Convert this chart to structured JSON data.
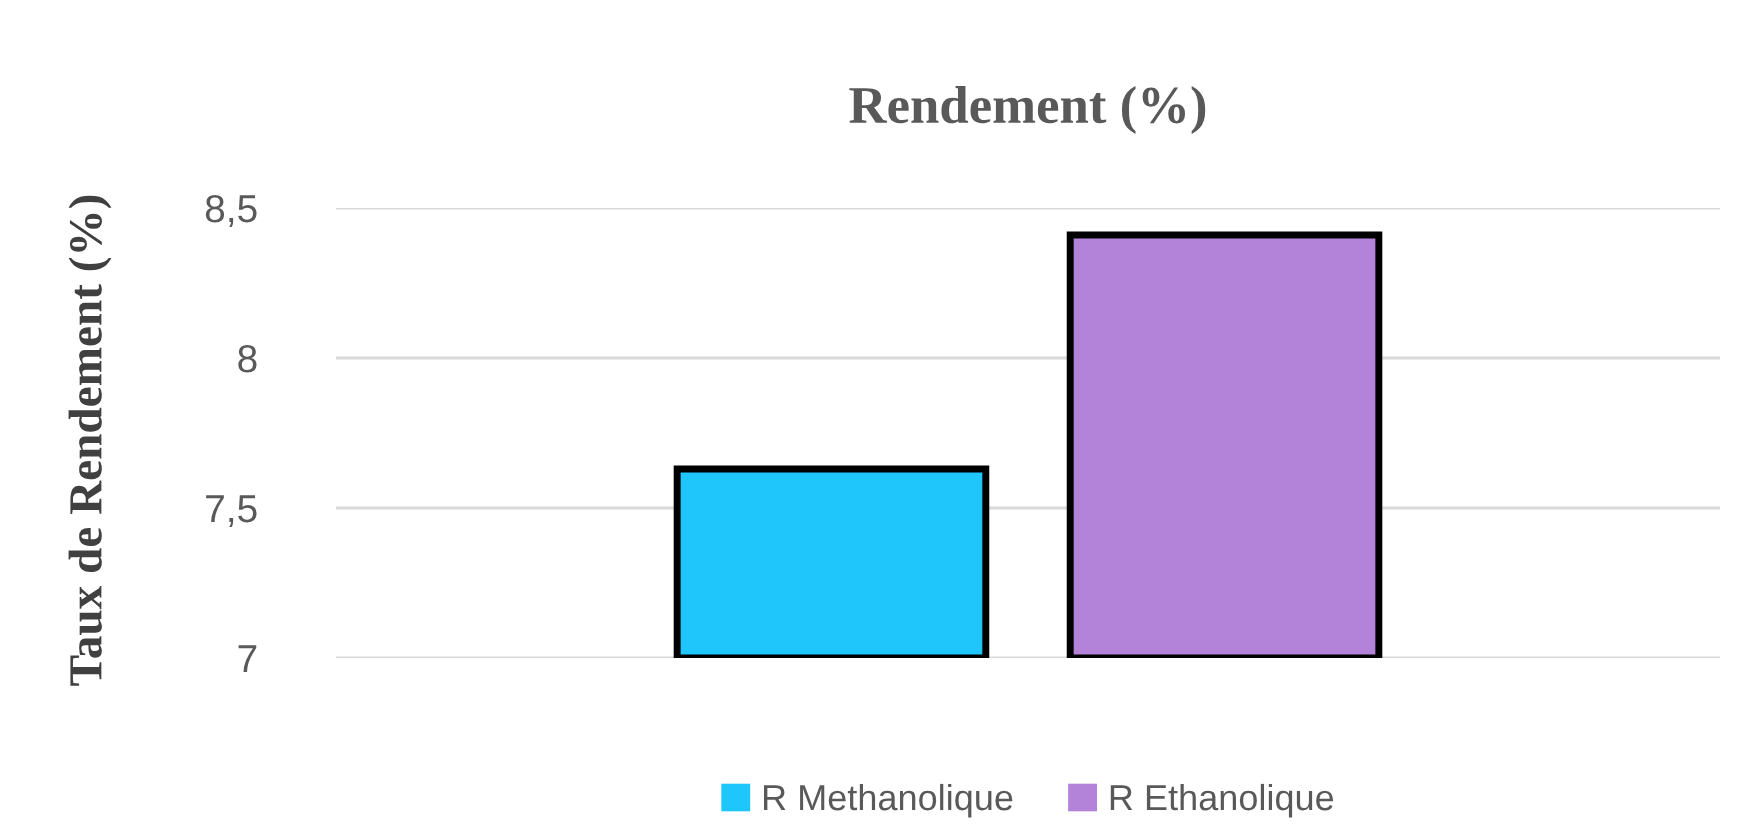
{
  "chart_data": {
    "type": "bar",
    "title": "Rendement (%)",
    "ylabel": "Taux de Rendement (%)",
    "categories": [
      null
    ],
    "series": [
      {
        "name": "R Methanolique",
        "color": "#1fc6fb",
        "values": [
          7.63
        ]
      },
      {
        "name": "R Ethanolique",
        "color": "#b283d9",
        "values": [
          8.41
        ]
      }
    ],
    "ylim": [
      7,
      8.5
    ],
    "yticks": [
      {
        "value": 7,
        "label": "7"
      },
      {
        "value": 7.5,
        "label": "7,5"
      },
      {
        "value": 8,
        "label": "8"
      },
      {
        "value": 8.5,
        "label": "8,5"
      }
    ],
    "grid": "y",
    "legend": "bottom"
  }
}
